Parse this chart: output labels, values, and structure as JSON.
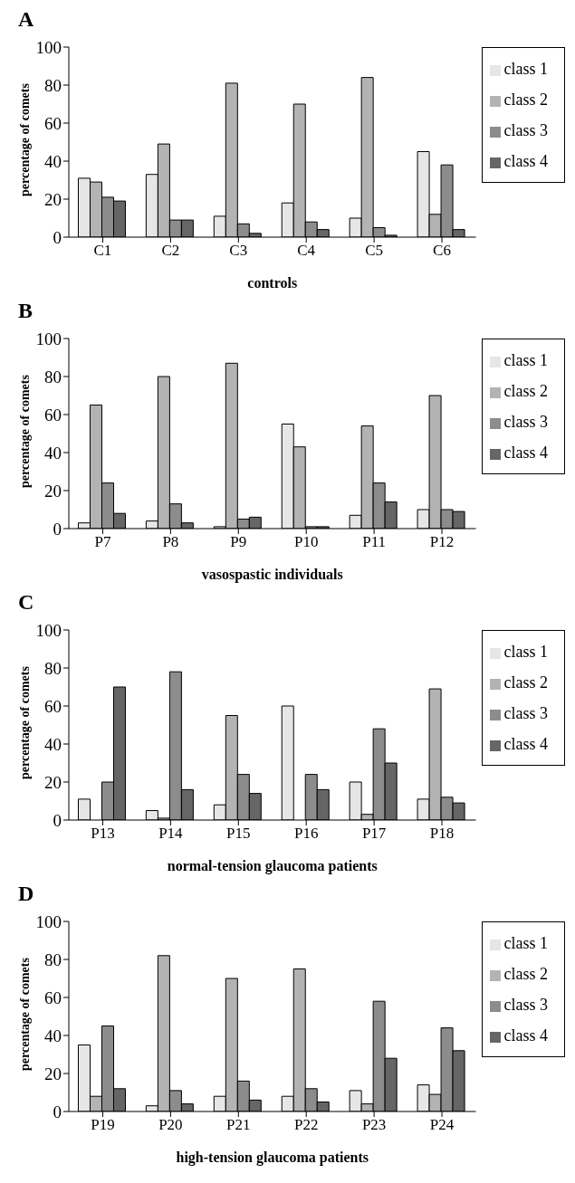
{
  "chart_data": [
    {
      "type": "bar",
      "title": "A",
      "xlabel": "controls",
      "ylabel": "percentage of comets",
      "categories": [
        "C1",
        "C2",
        "C3",
        "C4",
        "C5",
        "C6"
      ],
      "ylim": [
        0,
        100
      ],
      "yticks": [
        0,
        20,
        40,
        60,
        80,
        100
      ],
      "grid": false,
      "legend": "right",
      "series": [
        {
          "name": "class 1",
          "color": "#e6e6e6",
          "values": [
            31,
            33,
            11,
            18,
            10,
            45
          ]
        },
        {
          "name": "class 2",
          "color": "#b3b3b3",
          "values": [
            29,
            49,
            81,
            70,
            84,
            12
          ]
        },
        {
          "name": "class 3",
          "color": "#8c8c8c",
          "values": [
            21,
            9,
            7,
            8,
            5,
            38
          ]
        },
        {
          "name": "class 4",
          "color": "#666666",
          "values": [
            19,
            9,
            2,
            4,
            1,
            4
          ]
        }
      ]
    },
    {
      "type": "bar",
      "title": "B",
      "xlabel": "vasospastic individuals",
      "ylabel": "percentage of comets",
      "categories": [
        "P7",
        "P8",
        "P9",
        "P10",
        "P11",
        "P12"
      ],
      "ylim": [
        0,
        100
      ],
      "yticks": [
        0,
        20,
        40,
        60,
        80,
        100
      ],
      "grid": false,
      "legend": "right",
      "series": [
        {
          "name": "class 1",
          "color": "#e6e6e6",
          "values": [
            3,
            4,
            1,
            55,
            7,
            10
          ]
        },
        {
          "name": "class 2",
          "color": "#b3b3b3",
          "values": [
            65,
            80,
            87,
            43,
            54,
            70
          ]
        },
        {
          "name": "class 3",
          "color": "#8c8c8c",
          "values": [
            24,
            13,
            5,
            1,
            24,
            10
          ]
        },
        {
          "name": "class 4",
          "color": "#666666",
          "values": [
            8,
            3,
            6,
            1,
            14,
            9
          ]
        }
      ]
    },
    {
      "type": "bar",
      "title": "C",
      "xlabel": "normal-tension glaucoma patients",
      "ylabel": "percentage of comets",
      "categories": [
        "P13",
        "P14",
        "P15",
        "P16",
        "P17",
        "P18"
      ],
      "ylim": [
        0,
        100
      ],
      "yticks": [
        0,
        20,
        40,
        60,
        80,
        100
      ],
      "grid": false,
      "legend": "right",
      "series": [
        {
          "name": "class 1",
          "color": "#e6e6e6",
          "values": [
            11,
            5,
            8,
            60,
            20,
            11
          ]
        },
        {
          "name": "class 2",
          "color": "#b3b3b3",
          "values": [
            0,
            1,
            55,
            0,
            3,
            69
          ]
        },
        {
          "name": "class 3",
          "color": "#8c8c8c",
          "values": [
            20,
            78,
            24,
            24,
            48,
            12
          ]
        },
        {
          "name": "class 4",
          "color": "#666666",
          "values": [
            70,
            16,
            14,
            16,
            30,
            9
          ]
        }
      ]
    },
    {
      "type": "bar",
      "title": "D",
      "xlabel": "high-tension glaucoma patients",
      "ylabel": "percentage of comets",
      "categories": [
        "P19",
        "P20",
        "P21",
        "P22",
        "P23",
        "P24"
      ],
      "ylim": [
        0,
        100
      ],
      "yticks": [
        0,
        20,
        40,
        60,
        80,
        100
      ],
      "grid": false,
      "legend": "right",
      "series": [
        {
          "name": "class 1",
          "color": "#e6e6e6",
          "values": [
            35,
            3,
            8,
            8,
            11,
            14
          ]
        },
        {
          "name": "class 2",
          "color": "#b3b3b3",
          "values": [
            8,
            82,
            70,
            75,
            4,
            9
          ]
        },
        {
          "name": "class 3",
          "color": "#8c8c8c",
          "values": [
            45,
            11,
            16,
            12,
            58,
            44
          ]
        },
        {
          "name": "class 4",
          "color": "#666666",
          "values": [
            12,
            4,
            6,
            5,
            28,
            32
          ]
        }
      ]
    }
  ]
}
